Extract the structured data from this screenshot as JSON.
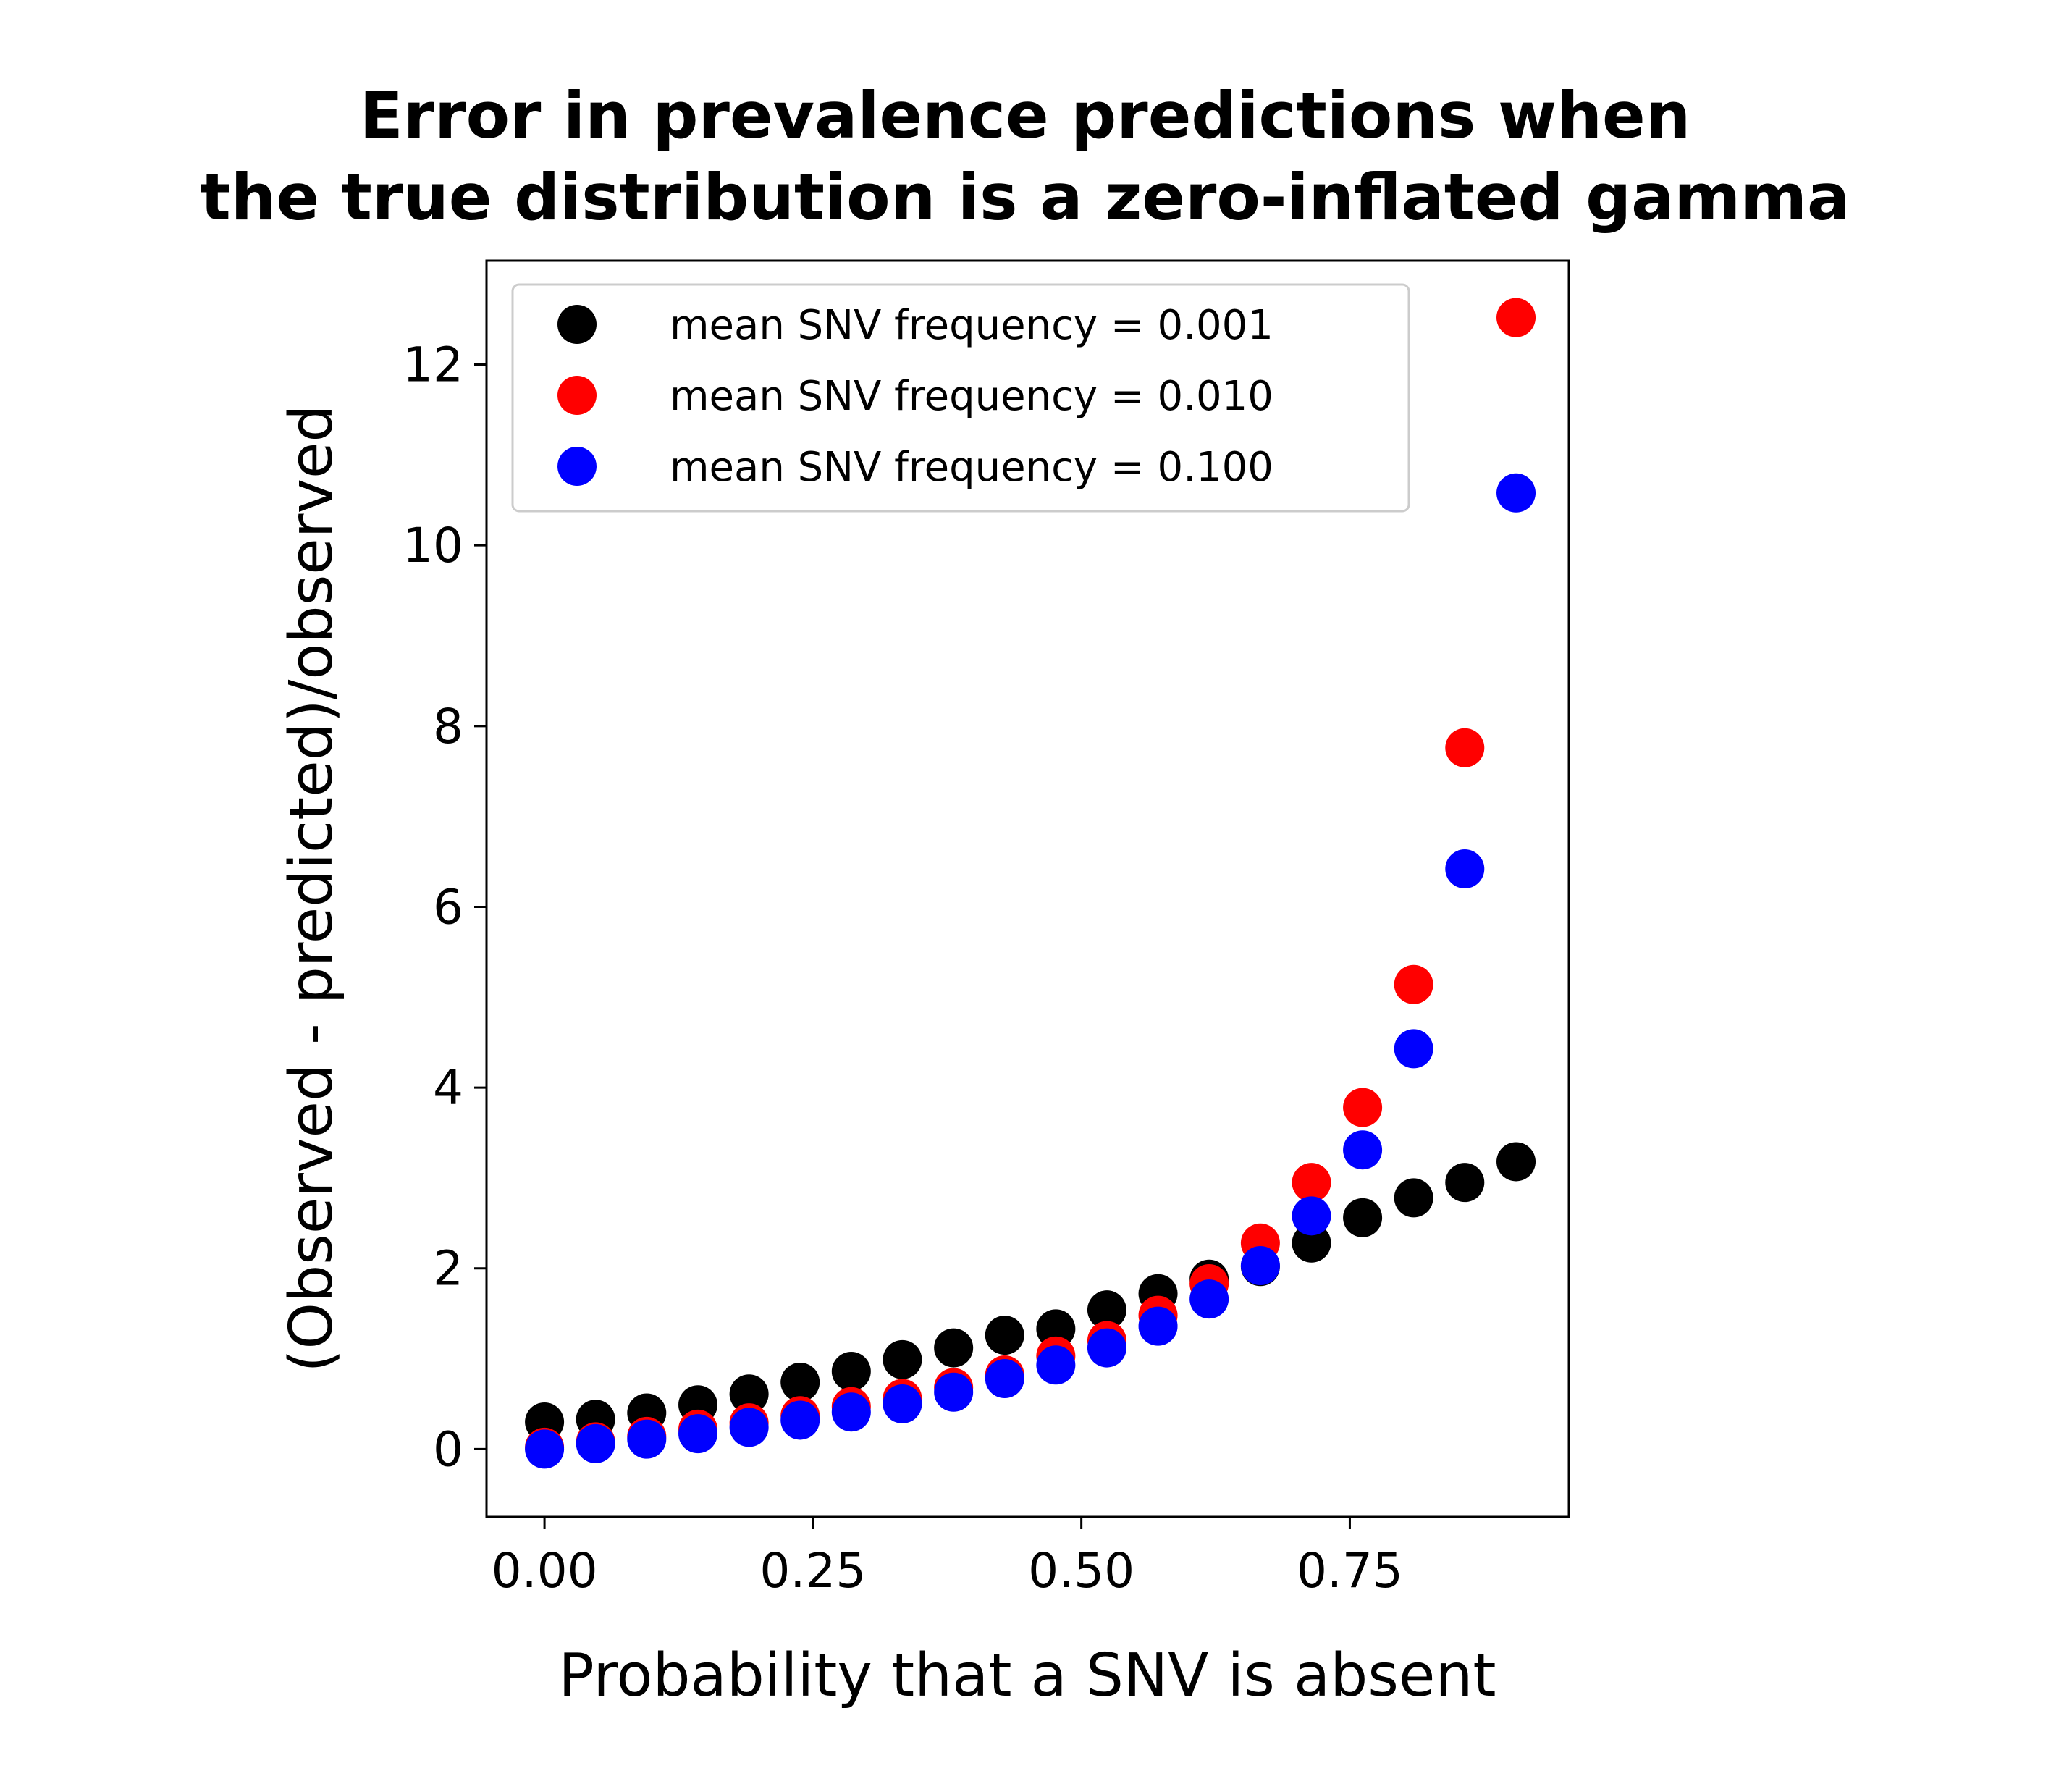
{
  "chart_data": {
    "type": "scatter",
    "title": [
      "Error in prevalence predictions when",
      "the true distribution is a zero-inflated gamma"
    ],
    "xlabel": "Probability that a SNV is absent",
    "ylabel": "(Observed - predicted)/observed",
    "xlim": [
      -0.054,
      0.954
    ],
    "ylim": [
      -0.75,
      13.15
    ],
    "xticks": [
      0.0,
      0.25,
      0.5,
      0.75
    ],
    "xtick_labels": [
      "0.00",
      "0.25",
      "0.50",
      "0.75"
    ],
    "yticks": [
      0,
      2,
      4,
      6,
      8,
      10,
      12
    ],
    "ytick_labels": [
      "0",
      "2",
      "4",
      "6",
      "8",
      "10",
      "12"
    ],
    "grid": false,
    "legend_position": "top-left",
    "x": [
      0.0,
      0.0476,
      0.0952,
      0.1429,
      0.1905,
      0.2381,
      0.2857,
      0.3333,
      0.381,
      0.4286,
      0.4762,
      0.5238,
      0.5714,
      0.619,
      0.6667,
      0.7143,
      0.7619,
      0.8095,
      0.8571,
      0.9048
    ],
    "series": [
      {
        "name": "mean SNV frequency = 0.001",
        "color": "#000000",
        "values": [
          0.3,
          0.33,
          0.4,
          0.49,
          0.61,
          0.74,
          0.86,
          0.99,
          1.12,
          1.26,
          1.33,
          1.54,
          1.72,
          1.88,
          2.02,
          2.28,
          2.56,
          2.78,
          2.95,
          3.18
        ]
      },
      {
        "name": "mean SNV frequency = 0.010",
        "color": "#ff0000",
        "values": [
          0.02,
          0.08,
          0.14,
          0.22,
          0.29,
          0.37,
          0.47,
          0.56,
          0.68,
          0.82,
          1.03,
          1.2,
          1.48,
          1.83,
          2.28,
          2.95,
          3.78,
          5.14,
          7.76,
          12.52
        ]
      },
      {
        "name": "mean SNV frequency = 0.100",
        "color": "#0000ff",
        "values": [
          0.0,
          0.06,
          0.11,
          0.17,
          0.24,
          0.32,
          0.41,
          0.5,
          0.63,
          0.78,
          0.93,
          1.12,
          1.36,
          1.66,
          2.03,
          2.58,
          3.31,
          4.43,
          6.42,
          10.58
        ]
      }
    ]
  }
}
